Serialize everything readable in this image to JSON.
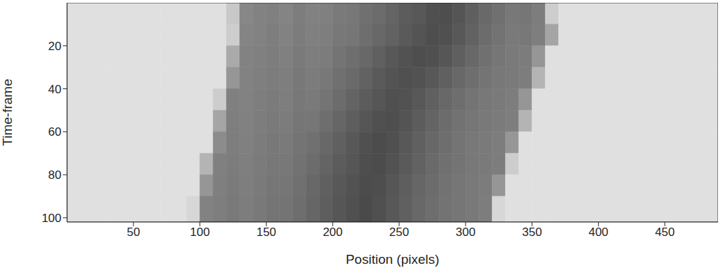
{
  "chart_data": {
    "type": "heatmap",
    "x_label": "Position (pixels)",
    "y_label": "Time-frame",
    "xlim": [
      0,
      490
    ],
    "ylim": [
      0,
      102
    ],
    "xticks": [
      50,
      100,
      150,
      200,
      250,
      300,
      350,
      400,
      450
    ],
    "yticks": [
      20,
      40,
      60,
      80,
      100
    ],
    "x_bins": [
      0,
      10,
      20,
      30,
      40,
      50,
      60,
      70,
      80,
      90,
      100,
      110,
      120,
      130,
      140,
      150,
      160,
      170,
      180,
      190,
      200,
      210,
      220,
      230,
      240,
      250,
      260,
      270,
      280,
      290,
      300,
      310,
      320,
      330,
      340,
      350,
      360,
      370,
      380,
      390,
      400,
      410,
      420,
      430,
      440,
      450,
      460,
      470,
      480,
      490
    ],
    "y_bins": [
      0,
      10,
      20,
      30,
      40,
      50,
      60,
      70,
      80,
      90,
      102
    ],
    "cells": [
      [
        224,
        224,
        224,
        224,
        224,
        224,
        224,
        224,
        224,
        224,
        224,
        224,
        200,
        135,
        130,
        128,
        132,
        125,
        130,
        128,
        122,
        120,
        112,
        108,
        100,
        92,
        88,
        80,
        78,
        85,
        95,
        105,
        112,
        120,
        118,
        125,
        205,
        224,
        224,
        224,
        224,
        224,
        224,
        224,
        224,
        224,
        224,
        224,
        224
      ],
      [
        224,
        224,
        224,
        224,
        224,
        224,
        224,
        224,
        224,
        224,
        224,
        224,
        205,
        132,
        130,
        126,
        130,
        124,
        128,
        126,
        120,
        118,
        110,
        104,
        98,
        90,
        84,
        78,
        80,
        88,
        98,
        108,
        115,
        122,
        120,
        126,
        165,
        224,
        224,
        224,
        224,
        224,
        224,
        224,
        224,
        224,
        224,
        224,
        224
      ],
      [
        224,
        224,
        224,
        224,
        224,
        224,
        224,
        224,
        224,
        224,
        224,
        224,
        170,
        130,
        128,
        125,
        128,
        122,
        126,
        124,
        116,
        110,
        104,
        96,
        88,
        82,
        78,
        80,
        86,
        95,
        104,
        112,
        118,
        122,
        124,
        150,
        224,
        224,
        224,
        224,
        224,
        224,
        224,
        224,
        224,
        224,
        224,
        224,
        224
      ],
      [
        224,
        224,
        224,
        224,
        224,
        224,
        224,
        224,
        224,
        224,
        224,
        224,
        150,
        130,
        127,
        124,
        126,
        120,
        124,
        120,
        112,
        106,
        98,
        90,
        84,
        80,
        82,
        88,
        96,
        104,
        110,
        116,
        120,
        122,
        125,
        180,
        224,
        224,
        224,
        224,
        224,
        224,
        224,
        224,
        224,
        224,
        224,
        224,
        224
      ],
      [
        224,
        224,
        224,
        224,
        224,
        224,
        224,
        224,
        224,
        224,
        224,
        205,
        128,
        130,
        126,
        123,
        126,
        120,
        122,
        116,
        108,
        100,
        92,
        86,
        80,
        82,
        88,
        96,
        104,
        110,
        116,
        120,
        122,
        125,
        150,
        224,
        224,
        224,
        224,
        224,
        224,
        224,
        224,
        224,
        224,
        224,
        224,
        224,
        224
      ],
      [
        224,
        224,
        224,
        224,
        224,
        224,
        224,
        224,
        224,
        224,
        224,
        165,
        126,
        129,
        125,
        122,
        124,
        118,
        118,
        110,
        102,
        94,
        86,
        80,
        78,
        84,
        92,
        100,
        108,
        114,
        118,
        121,
        123,
        126,
        180,
        224,
        224,
        224,
        224,
        224,
        224,
        224,
        224,
        224,
        224,
        224,
        224,
        224,
        224
      ],
      [
        224,
        224,
        224,
        224,
        224,
        224,
        224,
        224,
        224,
        224,
        224,
        140,
        125,
        128,
        124,
        120,
        122,
        116,
        112,
        104,
        96,
        88,
        80,
        76,
        80,
        88,
        96,
        104,
        110,
        116,
        120,
        122,
        125,
        150,
        224,
        224,
        224,
        224,
        224,
        224,
        224,
        224,
        224,
        224,
        224,
        224,
        224,
        224,
        224
      ],
      [
        224,
        224,
        224,
        224,
        224,
        224,
        224,
        224,
        224,
        224,
        180,
        128,
        124,
        127,
        123,
        120,
        120,
        114,
        108,
        100,
        92,
        86,
        78,
        76,
        82,
        90,
        98,
        106,
        112,
        116,
        120,
        122,
        125,
        205,
        224,
        224,
        224,
        224,
        224,
        224,
        224,
        224,
        224,
        224,
        224,
        224,
        224,
        224,
        224
      ],
      [
        224,
        224,
        224,
        224,
        224,
        224,
        224,
        224,
        224,
        224,
        150,
        127,
        122,
        126,
        122,
        118,
        118,
        112,
        104,
        96,
        88,
        82,
        76,
        78,
        86,
        94,
        102,
        108,
        114,
        118,
        121,
        124,
        150,
        224,
        224,
        224,
        224,
        224,
        224,
        224,
        224,
        224,
        224,
        224,
        224,
        224,
        224,
        224,
        224
      ],
      [
        224,
        224,
        224,
        224,
        224,
        224,
        224,
        224,
        224,
        215,
        130,
        126,
        121,
        125,
        121,
        116,
        116,
        110,
        102,
        94,
        86,
        80,
        74,
        80,
        88,
        96,
        104,
        110,
        115,
        118,
        121,
        125,
        215,
        224,
        224,
        224,
        224,
        224,
        224,
        224,
        224,
        224,
        224,
        224,
        224,
        224,
        224,
        224,
        224
      ]
    ]
  }
}
